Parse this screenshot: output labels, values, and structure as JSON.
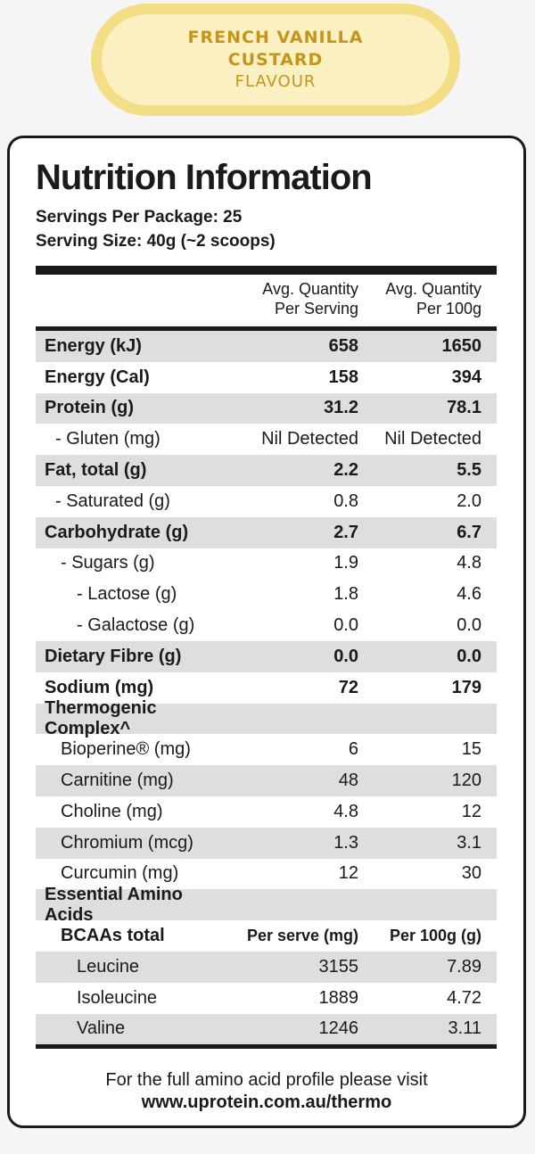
{
  "flavour": {
    "line1": "FRENCH VANILLA",
    "line2": "CUSTARD",
    "line3": "FLAVOUR"
  },
  "title": "Nutrition Information",
  "servings": "Servings Per Package: 25",
  "serving_size": "Serving Size: 40g (~2 scoops)",
  "headers": {
    "col2": [
      "Avg. Quantity",
      "Per Serving"
    ],
    "col3": [
      "Avg. Quantity",
      "Per 100g"
    ]
  },
  "rows": [
    {
      "label": "Energy (kJ)",
      "serve": "658",
      "per100": "1650",
      "bold": true,
      "shade": true,
      "indent": 0
    },
    {
      "label": "Energy (Cal)",
      "serve": "158",
      "per100": "394",
      "bold": true,
      "shade": false,
      "indent": 0
    },
    {
      "label": "Protein (g)",
      "serve": "31.2",
      "per100": "78.1",
      "bold": true,
      "shade": true,
      "indent": 0
    },
    {
      "label": "- Gluten (mg)",
      "serve": "Nil Detected",
      "per100": "Nil Detected",
      "bold": false,
      "shade": false,
      "indent": 12
    },
    {
      "label": "Fat, total (g)",
      "serve": "2.2",
      "per100": "5.5",
      "bold": true,
      "shade": true,
      "indent": 0
    },
    {
      "label": "- Saturated (g)",
      "serve": "0.8",
      "per100": "2.0",
      "bold": false,
      "shade": false,
      "indent": 12
    },
    {
      "label": "Carbohydrate (g)",
      "serve": "2.7",
      "per100": "6.7",
      "bold": true,
      "shade": true,
      "indent": 0
    },
    {
      "label": "- Sugars (g)",
      "serve": "1.9",
      "per100": "4.8",
      "bold": false,
      "shade": false,
      "indent": 18
    },
    {
      "label": "- Lactose (g)",
      "serve": "1.8",
      "per100": "4.6",
      "bold": false,
      "shade": false,
      "indent": 36
    },
    {
      "label": "- Galactose (g)",
      "serve": "0.0",
      "per100": "0.0",
      "bold": false,
      "shade": false,
      "indent": 36
    },
    {
      "label": "Dietary Fibre (g)",
      "serve": "0.0",
      "per100": "0.0",
      "bold": true,
      "shade": true,
      "indent": 0
    },
    {
      "label": "Sodium (mg)",
      "serve": "72",
      "per100": "179",
      "bold": true,
      "shade": false,
      "indent": 0
    },
    {
      "label": "Thermogenic Complex^",
      "serve": "",
      "per100": "",
      "bold": true,
      "shade": true,
      "indent": 0
    },
    {
      "label": "Bioperine® (mg)",
      "serve": "6",
      "per100": "15",
      "bold": false,
      "shade": false,
      "indent": 18
    },
    {
      "label": "Carnitine (mg)",
      "serve": "48",
      "per100": "120",
      "bold": false,
      "shade": true,
      "indent": 18
    },
    {
      "label": "Choline (mg)",
      "serve": "4.8",
      "per100": "12",
      "bold": false,
      "shade": false,
      "indent": 18
    },
    {
      "label": "Chromium (mcg)",
      "serve": "1.3",
      "per100": "3.1",
      "bold": false,
      "shade": true,
      "indent": 18
    },
    {
      "label": "Curcumin (mg)",
      "serve": "12",
      "per100": "30",
      "bold": false,
      "shade": false,
      "indent": 18
    },
    {
      "label": "Essential Amino Acids",
      "serve": "",
      "per100": "",
      "bold": true,
      "shade": true,
      "indent": 0
    },
    {
      "label": "BCAAs total",
      "serve": "Per serve (mg)",
      "per100": "Per 100g (g)",
      "bold": true,
      "shade": false,
      "indent": 18,
      "sub": true
    },
    {
      "label": "Leucine",
      "serve": "3155",
      "per100": "7.89",
      "bold": false,
      "shade": true,
      "indent": 36
    },
    {
      "label": "Isoleucine",
      "serve": "1889",
      "per100": "4.72",
      "bold": false,
      "shade": false,
      "indent": 36
    },
    {
      "label": "Valine",
      "serve": "1246",
      "per100": "3.11",
      "bold": false,
      "shade": true,
      "indent": 36
    }
  ],
  "footer": {
    "text": "For the full amino acid profile please visit",
    "url": "www.uprotein.com.au/thermo"
  }
}
